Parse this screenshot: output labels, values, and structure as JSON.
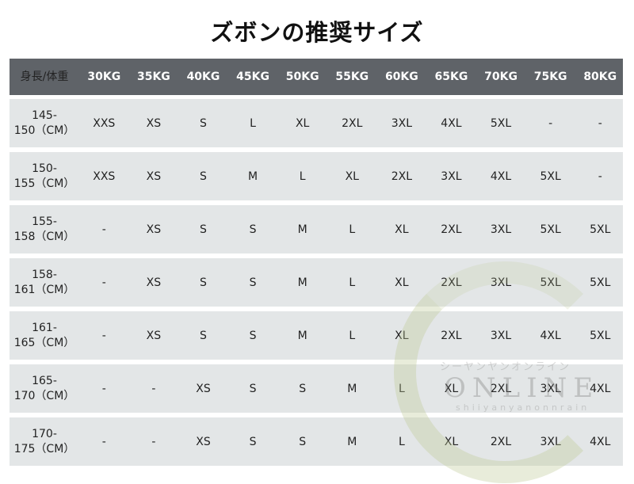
{
  "title": "ズボンの推奨サイズ",
  "table": {
    "header": [
      "身長/体重",
      "30KG",
      "35KG",
      "40KG",
      "45KG",
      "50KG",
      "55KG",
      "60KG",
      "65KG",
      "70KG",
      "75KG",
      "80KG"
    ],
    "rows": [
      {
        "height_line1": "145-",
        "height_line2": "150（CM）",
        "sizes": [
          "XXS",
          "XS",
          "S",
          "L",
          "XL",
          "2XL",
          "3XL",
          "4XL",
          "5XL",
          "-",
          "-"
        ]
      },
      {
        "height_line1": "150-",
        "height_line2": "155（CM）",
        "sizes": [
          "XXS",
          "XS",
          "S",
          "M",
          "L",
          "XL",
          "2XL",
          "3XL",
          "4XL",
          "5XL",
          "-"
        ]
      },
      {
        "height_line1": "155-",
        "height_line2": "158（CM）",
        "sizes": [
          "-",
          "XS",
          "S",
          "S",
          "M",
          "L",
          "XL",
          "2XL",
          "3XL",
          "5XL",
          "5XL"
        ]
      },
      {
        "height_line1": "158-",
        "height_line2": "161（CM）",
        "sizes": [
          "-",
          "XS",
          "S",
          "S",
          "M",
          "L",
          "XL",
          "2XL",
          "3XL",
          "5XL",
          "5XL"
        ]
      },
      {
        "height_line1": "161-",
        "height_line2": "165（CM）",
        "sizes": [
          "-",
          "XS",
          "S",
          "S",
          "M",
          "L",
          "XL",
          "2XL",
          "3XL",
          "4XL",
          "5XL"
        ]
      },
      {
        "height_line1": "165-",
        "height_line2": "170（CM）",
        "sizes": [
          "-",
          "-",
          "XS",
          "S",
          "S",
          "M",
          "L",
          "XL",
          "2XL",
          "3XL",
          "4XL"
        ]
      },
      {
        "height_line1": "170-",
        "height_line2": "175（CM）",
        "sizes": [
          "-",
          "-",
          "XS",
          "S",
          "S",
          "M",
          "L",
          "XL",
          "2XL",
          "3XL",
          "4XL"
        ]
      }
    ]
  },
  "watermark": {
    "kana": "シーヤンヤンオンライン",
    "main": "ONLINE",
    "roman": "shiiyanyanonnrain"
  },
  "colors": {
    "header_bg": "#5f6368",
    "row_bg": "#e3e6e7"
  }
}
